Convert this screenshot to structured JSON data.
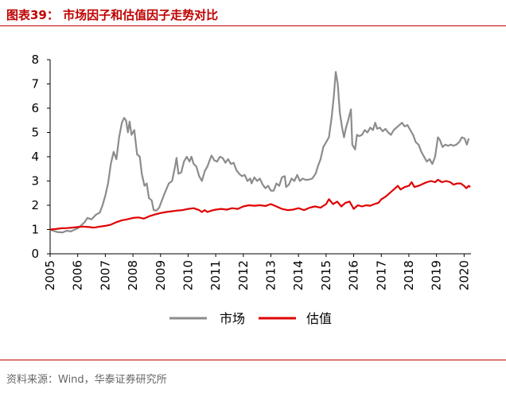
{
  "header": {
    "title": "图表39：  市场因子和估值因子走势对比"
  },
  "footer": {
    "source": "资料来源：Wind，华泰证券研究所"
  },
  "chart_data": {
    "type": "line",
    "title": "图表39：  市场因子和估值因子走势对比",
    "xlabel": "",
    "ylabel": "",
    "xlim": [
      2005,
      2020.25
    ],
    "ylim": [
      0,
      8
    ],
    "xticks": [
      "2005",
      "2006",
      "2007",
      "2008",
      "2009",
      "2010",
      "2011",
      "2012",
      "2013",
      "2014",
      "2015",
      "2016",
      "2017",
      "2018",
      "2019",
      "2020"
    ],
    "yticks": [
      "0",
      "1",
      "2",
      "3",
      "4",
      "5",
      "6",
      "7",
      "8"
    ],
    "grid": false,
    "legend": "bottom",
    "series": [
      {
        "name": "市场",
        "color": "#8c8c8c",
        "points": [
          [
            2005.0,
            1.0
          ],
          [
            2005.1,
            0.95
          ],
          [
            2005.25,
            0.9
          ],
          [
            2005.45,
            0.88
          ],
          [
            2005.6,
            0.95
          ],
          [
            2005.75,
            0.92
          ],
          [
            2005.9,
            1.0
          ],
          [
            2006.0,
            1.05
          ],
          [
            2006.1,
            1.15
          ],
          [
            2006.25,
            1.3
          ],
          [
            2006.35,
            1.48
          ],
          [
            2006.5,
            1.42
          ],
          [
            2006.65,
            1.6
          ],
          [
            2006.8,
            1.7
          ],
          [
            2006.9,
            2.0
          ],
          [
            2007.0,
            2.4
          ],
          [
            2007.1,
            2.9
          ],
          [
            2007.2,
            3.7
          ],
          [
            2007.3,
            4.2
          ],
          [
            2007.4,
            3.9
          ],
          [
            2007.5,
            4.8
          ],
          [
            2007.6,
            5.4
          ],
          [
            2007.68,
            5.6
          ],
          [
            2007.75,
            5.5
          ],
          [
            2007.82,
            5.0
          ],
          [
            2007.88,
            5.45
          ],
          [
            2007.95,
            4.9
          ],
          [
            2008.05,
            5.1
          ],
          [
            2008.15,
            4.1
          ],
          [
            2008.25,
            4.0
          ],
          [
            2008.32,
            3.3
          ],
          [
            2008.42,
            2.8
          ],
          [
            2008.5,
            2.9
          ],
          [
            2008.58,
            2.3
          ],
          [
            2008.68,
            2.2
          ],
          [
            2008.75,
            1.8
          ],
          [
            2008.85,
            1.78
          ],
          [
            2008.95,
            1.9
          ],
          [
            2009.05,
            2.2
          ],
          [
            2009.15,
            2.5
          ],
          [
            2009.3,
            2.9
          ],
          [
            2009.42,
            3.0
          ],
          [
            2009.52,
            3.55
          ],
          [
            2009.58,
            3.95
          ],
          [
            2009.65,
            3.3
          ],
          [
            2009.75,
            3.35
          ],
          [
            2009.85,
            3.8
          ],
          [
            2009.95,
            4.0
          ],
          [
            2010.05,
            3.8
          ],
          [
            2010.12,
            4.0
          ],
          [
            2010.2,
            3.7
          ],
          [
            2010.3,
            3.6
          ],
          [
            2010.4,
            3.2
          ],
          [
            2010.5,
            3.0
          ],
          [
            2010.6,
            3.4
          ],
          [
            2010.7,
            3.6
          ],
          [
            2010.78,
            3.85
          ],
          [
            2010.85,
            4.05
          ],
          [
            2010.95,
            3.85
          ],
          [
            2011.05,
            3.8
          ],
          [
            2011.15,
            4.0
          ],
          [
            2011.25,
            3.95
          ],
          [
            2011.35,
            3.75
          ],
          [
            2011.45,
            3.9
          ],
          [
            2011.55,
            3.7
          ],
          [
            2011.65,
            3.75
          ],
          [
            2011.75,
            3.45
          ],
          [
            2011.85,
            3.3
          ],
          [
            2011.95,
            3.2
          ],
          [
            2012.05,
            3.25
          ],
          [
            2012.15,
            3.0
          ],
          [
            2012.25,
            3.1
          ],
          [
            2012.3,
            2.9
          ],
          [
            2012.4,
            3.15
          ],
          [
            2012.5,
            3.0
          ],
          [
            2012.6,
            3.1
          ],
          [
            2012.7,
            2.85
          ],
          [
            2012.8,
            2.7
          ],
          [
            2012.9,
            2.8
          ],
          [
            2013.0,
            2.6
          ],
          [
            2013.1,
            2.6
          ],
          [
            2013.2,
            2.9
          ],
          [
            2013.3,
            2.8
          ],
          [
            2013.4,
            3.15
          ],
          [
            2013.5,
            3.2
          ],
          [
            2013.55,
            2.75
          ],
          [
            2013.65,
            2.85
          ],
          [
            2013.75,
            3.1
          ],
          [
            2013.85,
            3.0
          ],
          [
            2013.95,
            3.25
          ],
          [
            2014.05,
            3.0
          ],
          [
            2014.15,
            3.1
          ],
          [
            2014.25,
            3.05
          ],
          [
            2014.35,
            3.05
          ],
          [
            2014.5,
            3.1
          ],
          [
            2014.62,
            3.3
          ],
          [
            2014.7,
            3.6
          ],
          [
            2014.8,
            3.9
          ],
          [
            2014.9,
            4.4
          ],
          [
            2015.0,
            4.6
          ],
          [
            2015.1,
            4.8
          ],
          [
            2015.2,
            5.6
          ],
          [
            2015.28,
            6.5
          ],
          [
            2015.35,
            7.5
          ],
          [
            2015.42,
            7.0
          ],
          [
            2015.5,
            5.8
          ],
          [
            2015.58,
            5.2
          ],
          [
            2015.65,
            4.8
          ],
          [
            2015.72,
            5.2
          ],
          [
            2015.8,
            5.5
          ],
          [
            2015.9,
            5.95
          ],
          [
            2015.95,
            4.5
          ],
          [
            2016.05,
            4.3
          ],
          [
            2016.12,
            4.9
          ],
          [
            2016.2,
            4.85
          ],
          [
            2016.3,
            4.9
          ],
          [
            2016.4,
            5.1
          ],
          [
            2016.5,
            5.0
          ],
          [
            2016.6,
            5.2
          ],
          [
            2016.7,
            5.1
          ],
          [
            2016.78,
            5.4
          ],
          [
            2016.85,
            5.15
          ],
          [
            2016.95,
            5.2
          ],
          [
            2017.05,
            5.05
          ],
          [
            2017.15,
            5.15
          ],
          [
            2017.25,
            5.0
          ],
          [
            2017.35,
            4.9
          ],
          [
            2017.45,
            5.1
          ],
          [
            2017.55,
            5.2
          ],
          [
            2017.65,
            5.3
          ],
          [
            2017.75,
            5.4
          ],
          [
            2017.85,
            5.25
          ],
          [
            2017.95,
            5.3
          ],
          [
            2018.05,
            5.1
          ],
          [
            2018.15,
            4.9
          ],
          [
            2018.25,
            4.6
          ],
          [
            2018.35,
            4.5
          ],
          [
            2018.45,
            4.2
          ],
          [
            2018.55,
            4.0
          ],
          [
            2018.65,
            3.8
          ],
          [
            2018.75,
            3.9
          ],
          [
            2018.85,
            3.7
          ],
          [
            2018.95,
            4.0
          ],
          [
            2019.05,
            4.8
          ],
          [
            2019.12,
            4.7
          ],
          [
            2019.22,
            4.4
          ],
          [
            2019.32,
            4.5
          ],
          [
            2019.42,
            4.45
          ],
          [
            2019.52,
            4.5
          ],
          [
            2019.62,
            4.45
          ],
          [
            2019.72,
            4.5
          ],
          [
            2019.82,
            4.6
          ],
          [
            2019.92,
            4.8
          ],
          [
            2020.02,
            4.75
          ],
          [
            2020.1,
            4.5
          ],
          [
            2020.17,
            4.75
          ]
        ]
      },
      {
        "name": "估值",
        "color": "#e00000",
        "points": [
          [
            2005.0,
            1.0
          ],
          [
            2005.2,
            1.02
          ],
          [
            2005.4,
            1.05
          ],
          [
            2005.6,
            1.06
          ],
          [
            2005.8,
            1.08
          ],
          [
            2006.0,
            1.1
          ],
          [
            2006.2,
            1.12
          ],
          [
            2006.4,
            1.1
          ],
          [
            2006.6,
            1.08
          ],
          [
            2006.8,
            1.12
          ],
          [
            2007.0,
            1.15
          ],
          [
            2007.2,
            1.2
          ],
          [
            2007.4,
            1.3
          ],
          [
            2007.6,
            1.38
          ],
          [
            2007.8,
            1.42
          ],
          [
            2008.0,
            1.48
          ],
          [
            2008.2,
            1.5
          ],
          [
            2008.4,
            1.45
          ],
          [
            2008.6,
            1.55
          ],
          [
            2008.8,
            1.62
          ],
          [
            2009.0,
            1.68
          ],
          [
            2009.2,
            1.72
          ],
          [
            2009.4,
            1.75
          ],
          [
            2009.6,
            1.78
          ],
          [
            2009.8,
            1.8
          ],
          [
            2010.0,
            1.85
          ],
          [
            2010.2,
            1.88
          ],
          [
            2010.4,
            1.8
          ],
          [
            2010.5,
            1.72
          ],
          [
            2010.6,
            1.8
          ],
          [
            2010.7,
            1.72
          ],
          [
            2010.85,
            1.78
          ],
          [
            2011.0,
            1.82
          ],
          [
            2011.2,
            1.85
          ],
          [
            2011.4,
            1.82
          ],
          [
            2011.6,
            1.88
          ],
          [
            2011.8,
            1.85
          ],
          [
            2012.0,
            1.95
          ],
          [
            2012.2,
            2.0
          ],
          [
            2012.4,
            1.98
          ],
          [
            2012.6,
            2.0
          ],
          [
            2012.8,
            1.97
          ],
          [
            2013.0,
            2.05
          ],
          [
            2013.2,
            1.95
          ],
          [
            2013.4,
            1.85
          ],
          [
            2013.6,
            1.8
          ],
          [
            2013.8,
            1.82
          ],
          [
            2014.0,
            1.88
          ],
          [
            2014.2,
            1.8
          ],
          [
            2014.4,
            1.9
          ],
          [
            2014.6,
            1.95
          ],
          [
            2014.8,
            1.9
          ],
          [
            2015.0,
            2.05
          ],
          [
            2015.1,
            2.25
          ],
          [
            2015.25,
            2.05
          ],
          [
            2015.4,
            2.15
          ],
          [
            2015.55,
            1.95
          ],
          [
            2015.7,
            2.1
          ],
          [
            2015.85,
            2.15
          ],
          [
            2016.0,
            1.85
          ],
          [
            2016.15,
            2.0
          ],
          [
            2016.3,
            1.95
          ],
          [
            2016.45,
            2.0
          ],
          [
            2016.6,
            1.98
          ],
          [
            2016.75,
            2.05
          ],
          [
            2016.9,
            2.1
          ],
          [
            2017.0,
            2.25
          ],
          [
            2017.15,
            2.35
          ],
          [
            2017.3,
            2.5
          ],
          [
            2017.45,
            2.65
          ],
          [
            2017.6,
            2.8
          ],
          [
            2017.7,
            2.65
          ],
          [
            2017.85,
            2.75
          ],
          [
            2018.0,
            2.8
          ],
          [
            2018.1,
            2.95
          ],
          [
            2018.2,
            2.75
          ],
          [
            2018.35,
            2.8
          ],
          [
            2018.5,
            2.88
          ],
          [
            2018.65,
            2.95
          ],
          [
            2018.8,
            3.0
          ],
          [
            2018.95,
            2.95
          ],
          [
            2019.05,
            3.05
          ],
          [
            2019.2,
            2.95
          ],
          [
            2019.35,
            3.0
          ],
          [
            2019.5,
            2.95
          ],
          [
            2019.62,
            2.85
          ],
          [
            2019.75,
            2.9
          ],
          [
            2019.88,
            2.9
          ],
          [
            2020.0,
            2.8
          ],
          [
            2020.08,
            2.7
          ],
          [
            2020.17,
            2.8
          ],
          [
            2020.22,
            2.75
          ]
        ]
      }
    ]
  }
}
